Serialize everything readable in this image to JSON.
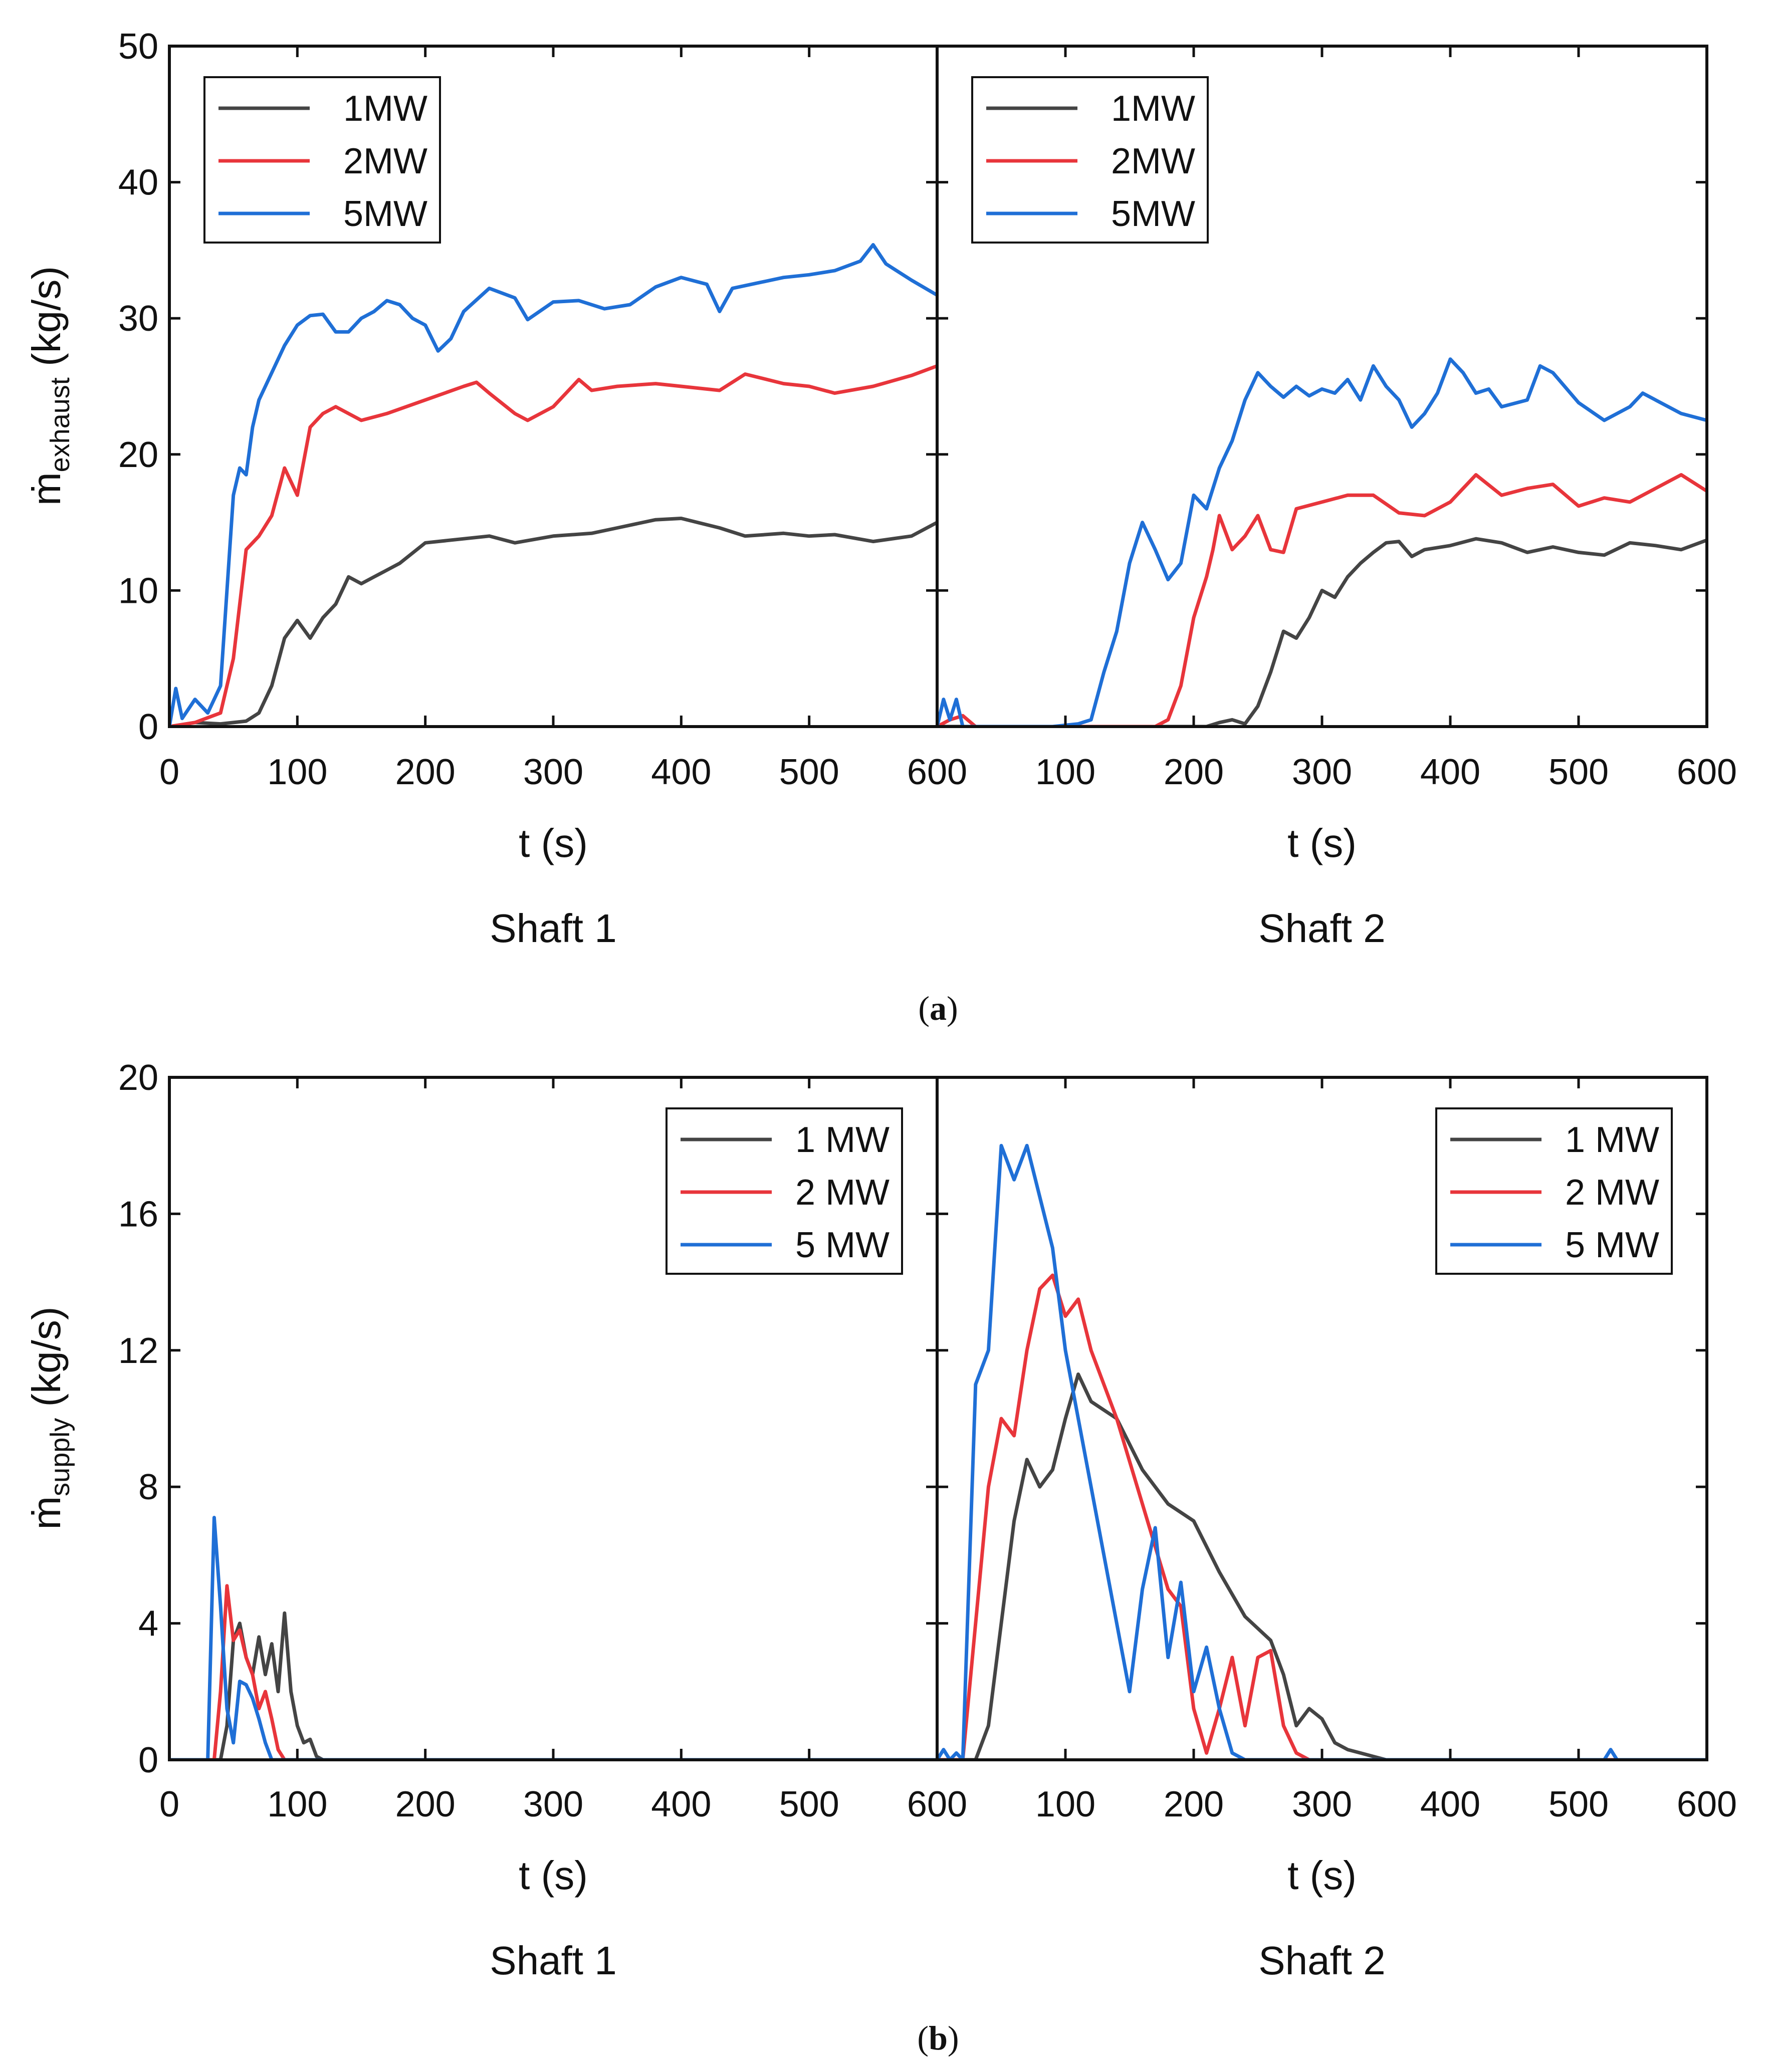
{
  "colors": {
    "1MW": "#444444",
    "2MW": "#e8353b",
    "5MW": "#1f6fd6",
    "axis": "#111111"
  },
  "chart_data": [
    {
      "type": "line",
      "panel": "a",
      "panel_label_open": "(",
      "panel_label_letter": "a",
      "panel_label_close": ")",
      "ylabel_main": "ṁ",
      "ylabel_sub": "exhaust",
      "ylabel_unit": " (kg/s)",
      "ylim": [
        0,
        50
      ],
      "yticks": [
        "0",
        "10",
        "20",
        "30",
        "40",
        "50"
      ],
      "subplots": [
        {
          "title": "Shaft 1",
          "xlabel": "t (s)",
          "xlim": [
            0,
            600
          ],
          "xticks": [
            "0",
            "100",
            "200",
            "300",
            "400",
            "500",
            "600"
          ],
          "legend": [
            "1MW",
            "2MW",
            "5MW"
          ],
          "legend_position": "top-left",
          "series": [
            {
              "name": "1MW",
              "x": [
                0,
                20,
                40,
                60,
                70,
                80,
                90,
                100,
                110,
                120,
                130,
                140,
                150,
                160,
                170,
                180,
                200,
                230,
                250,
                270,
                300,
                330,
                350,
                380,
                400,
                430,
                450,
                480,
                500,
                520,
                550,
                580,
                600
              ],
              "y": [
                0,
                0.3,
                0.2,
                0.4,
                1,
                3,
                6.5,
                7.8,
                6.5,
                8,
                9,
                11,
                10.5,
                11,
                11.5,
                12,
                13.5,
                13.8,
                14,
                13.5,
                14,
                14.2,
                14.6,
                15.2,
                15.3,
                14.6,
                14,
                14.2,
                14,
                14.1,
                13.6,
                14,
                15
              ]
            },
            {
              "name": "2MW",
              "x": [
                0,
                20,
                40,
                50,
                60,
                70,
                80,
                90,
                100,
                110,
                120,
                130,
                150,
                170,
                200,
                230,
                240,
                250,
                270,
                280,
                300,
                320,
                330,
                350,
                380,
                400,
                430,
                450,
                480,
                500,
                520,
                550,
                580,
                600
              ],
              "y": [
                0,
                0.3,
                1,
                5,
                13,
                14,
                15.5,
                19,
                17,
                22,
                23,
                23.5,
                22.5,
                23,
                24,
                25,
                25.3,
                24.5,
                23,
                22.5,
                23.5,
                25.5,
                24.7,
                25,
                25.2,
                25,
                24.7,
                25.9,
                25.2,
                25,
                24.5,
                25,
                25.8,
                26.5
              ]
            },
            {
              "name": "5MW",
              "x": [
                0,
                5,
                10,
                20,
                30,
                40,
                50,
                55,
                60,
                65,
                70,
                80,
                90,
                100,
                110,
                120,
                130,
                140,
                150,
                160,
                170,
                180,
                190,
                200,
                210,
                220,
                230,
                250,
                270,
                280,
                300,
                320,
                340,
                360,
                380,
                400,
                420,
                430,
                440,
                460,
                480,
                500,
                520,
                540,
                550,
                560,
                580,
                600
              ],
              "y": [
                0,
                2.8,
                0.6,
                2,
                1,
                3,
                17,
                19,
                18.5,
                22,
                24,
                26,
                28,
                29.5,
                30.2,
                30.3,
                29,
                29,
                30,
                30.5,
                31.3,
                31,
                30,
                29.5,
                27.6,
                28.5,
                30.5,
                32.2,
                31.5,
                29.9,
                31.2,
                31.3,
                30.7,
                31,
                32.3,
                33,
                32.5,
                30.5,
                32.2,
                32.6,
                33,
                33.2,
                33.5,
                34.2,
                35.4,
                34,
                32.8,
                31.7
              ]
            }
          ]
        },
        {
          "title": "Shaft 2",
          "xlabel": "t (s)",
          "xlim": [
            0,
            600
          ],
          "xticks": [
            "0",
            "100",
            "200",
            "300",
            "400",
            "500",
            "600"
          ],
          "legend": [
            "1MW",
            "2MW",
            "5MW"
          ],
          "legend_position": "top-left",
          "series": [
            {
              "name": "1MW",
              "x": [
                0,
                10,
                20,
                30,
                40,
                200,
                210,
                220,
                230,
                240,
                250,
                260,
                270,
                280,
                290,
                300,
                310,
                320,
                330,
                340,
                350,
                360,
                370,
                380,
                400,
                420,
                440,
                460,
                480,
                500,
                520,
                540,
                560,
                580,
                600
              ],
              "y": [
                0,
                0,
                0,
                0,
                0,
                0,
                0,
                0.3,
                0.5,
                0.2,
                1.5,
                4,
                7,
                6.5,
                8,
                10,
                9.5,
                11,
                12,
                12.8,
                13.5,
                13.6,
                12.5,
                13,
                13.3,
                13.8,
                13.5,
                12.8,
                13.2,
                12.8,
                12.6,
                13.5,
                13.3,
                13,
                13.7
              ]
            },
            {
              "name": "2MW",
              "x": [
                0,
                10,
                20,
                30,
                150,
                170,
                180,
                190,
                200,
                210,
                215,
                220,
                230,
                240,
                250,
                260,
                270,
                280,
                300,
                320,
                340,
                360,
                380,
                400,
                420,
                440,
                460,
                480,
                500,
                520,
                540,
                560,
                580,
                600
              ],
              "y": [
                0,
                0.5,
                0.8,
                0,
                0,
                0,
                0.5,
                3,
                8,
                11,
                13,
                15.5,
                13,
                14,
                15.5,
                13,
                12.8,
                16,
                16.5,
                17,
                17,
                15.7,
                15.5,
                16.5,
                18.5,
                17,
                17.5,
                17.8,
                16.2,
                16.8,
                16.5,
                17.5,
                18.5,
                17.3
              ]
            },
            {
              "name": "5MW",
              "x": [
                0,
                5,
                10,
                15,
                20,
                30,
                90,
                110,
                120,
                130,
                140,
                150,
                160,
                170,
                180,
                190,
                200,
                210,
                220,
                230,
                240,
                250,
                260,
                270,
                280,
                290,
                300,
                310,
                320,
                330,
                340,
                350,
                360,
                370,
                380,
                390,
                400,
                410,
                420,
                430,
                440,
                460,
                470,
                480,
                500,
                520,
                540,
                550,
                560,
                580,
                600
              ],
              "y": [
                0,
                2,
                0.5,
                2,
                0,
                0,
                0,
                0.2,
                0.5,
                4,
                7,
                12,
                15,
                13,
                10.8,
                12,
                17,
                16,
                19,
                21,
                24,
                26,
                25,
                24.2,
                25,
                24.3,
                24.8,
                24.5,
                25.5,
                24,
                26.5,
                25,
                24,
                22,
                23,
                24.5,
                27,
                26,
                24.5,
                24.8,
                23.5,
                24,
                26.5,
                26,
                23.8,
                22.5,
                23.5,
                24.5,
                24,
                23,
                22.5
              ]
            }
          ]
        }
      ]
    },
    {
      "type": "line",
      "panel": "b",
      "panel_label_open": "(",
      "panel_label_letter": "b",
      "panel_label_close": ")",
      "ylabel_main": "ṁ",
      "ylabel_sub": "supply",
      "ylabel_unit": " (kg/s)",
      "ylim": [
        0,
        20
      ],
      "yticks": [
        "0",
        "4",
        "8",
        "12",
        "16",
        "20"
      ],
      "subplots": [
        {
          "title": "Shaft 1",
          "xlabel": "t (s)",
          "xlim": [
            0,
            600
          ],
          "xticks": [
            "0",
            "100",
            "200",
            "300",
            "400",
            "500",
            "600"
          ],
          "legend": [
            "1 MW",
            "2 MW",
            "5 MW"
          ],
          "legend_position": "top-right",
          "series": [
            {
              "name": "1 MW",
              "x": [
                0,
                40,
                45,
                50,
                55,
                60,
                65,
                70,
                75,
                80,
                85,
                90,
                95,
                100,
                105,
                110,
                115,
                120,
                600
              ],
              "y": [
                0,
                0,
                1,
                3.5,
                4,
                3,
                2.5,
                3.6,
                2.5,
                3.4,
                2,
                4.3,
                2,
                1,
                0.5,
                0.6,
                0.1,
                0,
                0
              ]
            },
            {
              "name": "2 MW",
              "x": [
                0,
                35,
                40,
                45,
                50,
                55,
                60,
                65,
                70,
                75,
                80,
                85,
                90,
                600
              ],
              "y": [
                0,
                0,
                2,
                5.1,
                3.5,
                3.8,
                3,
                2.5,
                1.5,
                2,
                1.2,
                0.3,
                0,
                0
              ]
            },
            {
              "name": "5 MW",
              "x": [
                0,
                30,
                35,
                40,
                45,
                50,
                55,
                60,
                65,
                70,
                75,
                80,
                600
              ],
              "y": [
                0,
                0,
                7.1,
                4.5,
                1.5,
                0.5,
                2.3,
                2.2,
                1.8,
                1.2,
                0.5,
                0,
                0
              ]
            }
          ]
        },
        {
          "title": "Shaft 2",
          "xlabel": "t (s)",
          "xlim": [
            0,
            600
          ],
          "xticks": [
            "0",
            "100",
            "200",
            "300",
            "400",
            "500",
            "600"
          ],
          "legend": [
            "1 MW",
            "2 MW",
            "5 MW"
          ],
          "legend_position": "top-right",
          "series": [
            {
              "name": "1 MW",
              "x": [
                0,
                20,
                30,
                40,
                50,
                60,
                70,
                80,
                90,
                100,
                110,
                120,
                140,
                160,
                180,
                200,
                220,
                240,
                260,
                270,
                280,
                290,
                300,
                310,
                320,
                330,
                340,
                350,
                600
              ],
              "y": [
                0,
                0,
                0,
                1,
                4,
                7,
                8.8,
                8,
                8.5,
                10,
                11.3,
                10.5,
                10,
                8.5,
                7.5,
                7,
                5.5,
                4.2,
                3.5,
                2.5,
                1,
                1.5,
                1.2,
                0.5,
                0.3,
                0.2,
                0.1,
                0,
                0
              ]
            },
            {
              "name": "2 MW",
              "x": [
                0,
                20,
                30,
                40,
                50,
                60,
                70,
                80,
                90,
                100,
                110,
                120,
                140,
                160,
                180,
                190,
                200,
                210,
                220,
                230,
                240,
                250,
                260,
                270,
                280,
                290,
                600
              ],
              "y": [
                0,
                0,
                4,
                8,
                10,
                9.5,
                12,
                13.8,
                14.2,
                13,
                13.5,
                12,
                10,
                7.5,
                5,
                4.5,
                1.5,
                0.2,
                1.5,
                3,
                1,
                3,
                3.2,
                1,
                0.2,
                0,
                0
              ]
            },
            {
              "name": "5 MW",
              "x": [
                0,
                5,
                10,
                15,
                20,
                30,
                40,
                50,
                60,
                70,
                80,
                90,
                100,
                110,
                120,
                130,
                140,
                150,
                160,
                170,
                180,
                190,
                200,
                210,
                220,
                230,
                240,
                520,
                525,
                530,
                600
              ],
              "y": [
                0,
                0.3,
                0,
                0.2,
                0,
                11,
                12,
                18,
                17,
                18,
                16.5,
                15,
                12,
                10,
                8,
                6,
                4,
                2,
                5,
                6.8,
                3,
                5.2,
                2,
                3.3,
                1.5,
                0.2,
                0,
                0,
                0.3,
                0,
                0
              ]
            }
          ]
        }
      ]
    }
  ]
}
